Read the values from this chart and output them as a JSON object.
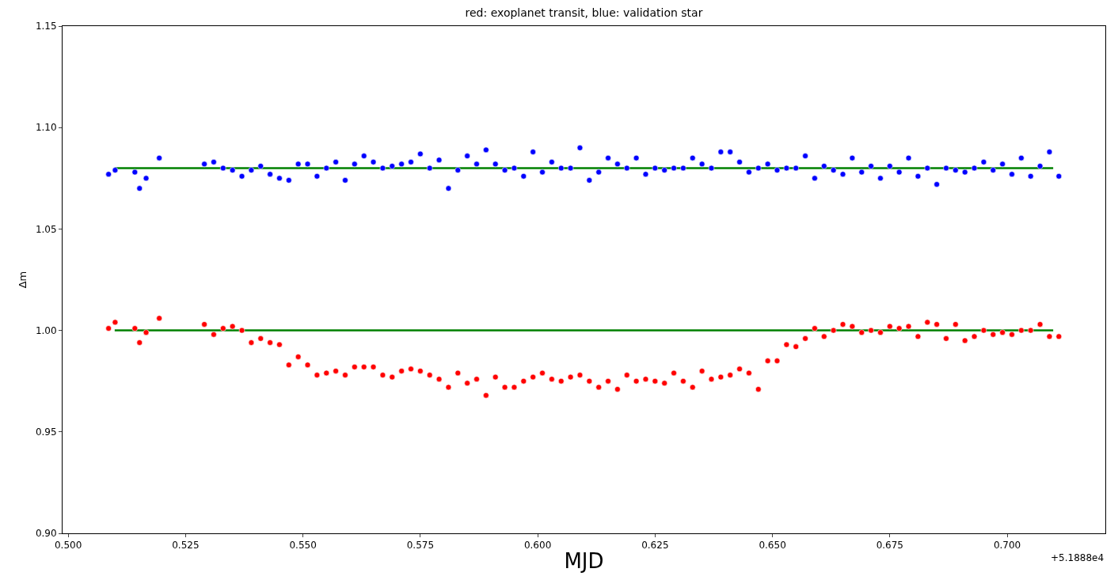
{
  "chart_data": {
    "type": "scatter",
    "title": "red: exoplanet transit, blue: validation star",
    "xlabel": "MJD",
    "ylabel": "Δm",
    "annotations": [
      "+5.1888e4"
    ],
    "xlim": [
      0.4988,
      0.7209
    ],
    "xticks": [
      {
        "value": 0.5,
        "label": "0.500"
      },
      {
        "value": 0.525,
        "label": "0.525"
      },
      {
        "value": 0.55,
        "label": "0.550"
      },
      {
        "value": 0.575,
        "label": "0.575"
      },
      {
        "value": 0.6,
        "label": "0.600"
      },
      {
        "value": 0.625,
        "label": "0.625"
      },
      {
        "value": 0.65,
        "label": "0.650"
      },
      {
        "value": 0.675,
        "label": "0.675"
      },
      {
        "value": 0.7,
        "label": "0.700"
      }
    ],
    "ylim": [
      0.9,
      1.15
    ],
    "yticks": [
      {
        "value": 0.9,
        "label": "0.90"
      },
      {
        "value": 0.95,
        "label": "0.95"
      },
      {
        "value": 1.0,
        "label": "1.00"
      },
      {
        "value": 1.05,
        "label": "1.05"
      },
      {
        "value": 1.1,
        "label": "1.10"
      },
      {
        "value": 1.15,
        "label": "1.15"
      }
    ],
    "marker": "circle",
    "grid": false,
    "ref_lines": [
      {
        "axis": "y",
        "value": 1.08,
        "color": "#008000"
      },
      {
        "axis": "y",
        "value": 1.0,
        "color": "#008000"
      }
    ],
    "series": [
      {
        "color": "#0000ff",
        "x": [
          0.5086,
          0.51,
          0.5142,
          0.5152,
          0.5166,
          0.5194,
          0.529,
          0.531,
          0.533,
          0.535,
          0.537,
          0.539,
          0.541,
          0.543,
          0.545,
          0.547,
          0.549,
          0.551,
          0.553,
          0.555,
          0.557,
          0.559,
          0.561,
          0.563,
          0.565,
          0.567,
          0.569,
          0.571,
          0.573,
          0.575,
          0.577,
          0.579,
          0.581,
          0.583,
          0.585,
          0.587,
          0.589,
          0.591,
          0.593,
          0.595,
          0.597,
          0.599,
          0.601,
          0.603,
          0.605,
          0.607,
          0.609,
          0.611,
          0.613,
          0.615,
          0.617,
          0.619,
          0.621,
          0.623,
          0.625,
          0.627,
          0.629,
          0.631,
          0.633,
          0.635,
          0.637,
          0.639,
          0.641,
          0.643,
          0.645,
          0.647,
          0.649,
          0.651,
          0.653,
          0.655,
          0.657,
          0.659,
          0.661,
          0.663,
          0.665,
          0.667,
          0.669,
          0.671,
          0.673,
          0.675,
          0.677,
          0.679,
          0.681,
          0.683,
          0.685,
          0.687,
          0.689,
          0.691,
          0.693,
          0.695,
          0.697,
          0.699,
          0.701,
          0.703,
          0.705,
          0.707,
          0.709,
          0.711
        ],
        "values": [
          1.077,
          1.079,
          1.078,
          1.07,
          1.075,
          1.085,
          1.082,
          1.083,
          1.08,
          1.079,
          1.076,
          1.079,
          1.081,
          1.077,
          1.075,
          1.074,
          1.082,
          1.082,
          1.076,
          1.08,
          1.083,
          1.074,
          1.082,
          1.086,
          1.083,
          1.08,
          1.081,
          1.082,
          1.083,
          1.087,
          1.08,
          1.084,
          1.07,
          1.079,
          1.086,
          1.082,
          1.089,
          1.082,
          1.079,
          1.08,
          1.076,
          1.088,
          1.078,
          1.083,
          1.08,
          1.08,
          1.09,
          1.074,
          1.078,
          1.085,
          1.082,
          1.08,
          1.085,
          1.077,
          1.08,
          1.079,
          1.08,
          1.08,
          1.085,
          1.082,
          1.08,
          1.088,
          1.088,
          1.083,
          1.078,
          1.08,
          1.082,
          1.079,
          1.08,
          1.08,
          1.086,
          1.075,
          1.081,
          1.079,
          1.077,
          1.085,
          1.078,
          1.081,
          1.075,
          1.081,
          1.078,
          1.085,
          1.076,
          1.08,
          1.072,
          1.08,
          1.079,
          1.078,
          1.08,
          1.083,
          1.079,
          1.082,
          1.077,
          1.085,
          1.076,
          1.081,
          1.088,
          1.076
        ]
      },
      {
        "color": "#ff0000",
        "x": [
          0.5086,
          0.51,
          0.5142,
          0.5152,
          0.5166,
          0.5194,
          0.529,
          0.531,
          0.533,
          0.535,
          0.537,
          0.539,
          0.541,
          0.543,
          0.545,
          0.547,
          0.549,
          0.551,
          0.553,
          0.555,
          0.557,
          0.559,
          0.561,
          0.563,
          0.565,
          0.567,
          0.569,
          0.571,
          0.573,
          0.575,
          0.577,
          0.579,
          0.581,
          0.583,
          0.585,
          0.587,
          0.589,
          0.591,
          0.593,
          0.595,
          0.597,
          0.599,
          0.601,
          0.603,
          0.605,
          0.607,
          0.609,
          0.611,
          0.613,
          0.615,
          0.617,
          0.619,
          0.621,
          0.623,
          0.625,
          0.627,
          0.629,
          0.631,
          0.633,
          0.635,
          0.637,
          0.639,
          0.641,
          0.643,
          0.645,
          0.647,
          0.649,
          0.651,
          0.653,
          0.655,
          0.657,
          0.659,
          0.661,
          0.663,
          0.665,
          0.667,
          0.669,
          0.671,
          0.673,
          0.675,
          0.677,
          0.679,
          0.681,
          0.683,
          0.685,
          0.687,
          0.689,
          0.691,
          0.693,
          0.695,
          0.697,
          0.699,
          0.701,
          0.703,
          0.705,
          0.707,
          0.709,
          0.711
        ],
        "values": [
          1.001,
          1.004,
          1.001,
          0.994,
          0.999,
          1.006,
          1.003,
          0.998,
          1.001,
          1.002,
          1.0,
          0.994,
          0.996,
          0.994,
          0.993,
          0.983,
          0.987,
          0.983,
          0.978,
          0.979,
          0.98,
          0.978,
          0.982,
          0.982,
          0.982,
          0.978,
          0.977,
          0.98,
          0.981,
          0.98,
          0.978,
          0.976,
          0.972,
          0.979,
          0.974,
          0.976,
          0.968,
          0.977,
          0.972,
          0.972,
          0.975,
          0.977,
          0.979,
          0.976,
          0.975,
          0.977,
          0.978,
          0.975,
          0.972,
          0.975,
          0.971,
          0.978,
          0.975,
          0.976,
          0.975,
          0.974,
          0.979,
          0.975,
          0.972,
          0.98,
          0.976,
          0.977,
          0.978,
          0.981,
          0.979,
          0.971,
          0.985,
          0.985,
          0.993,
          0.992,
          0.996,
          1.001,
          0.997,
          1.0,
          1.003,
          1.002,
          0.999,
          1.0,
          0.999,
          1.002,
          1.001,
          1.002,
          0.997,
          1.004,
          1.003,
          0.996,
          1.003,
          0.995,
          0.997,
          1.0,
          0.998,
          0.999,
          0.998,
          1.0,
          1.0,
          1.003,
          0.997,
          0.997
        ]
      }
    ]
  }
}
